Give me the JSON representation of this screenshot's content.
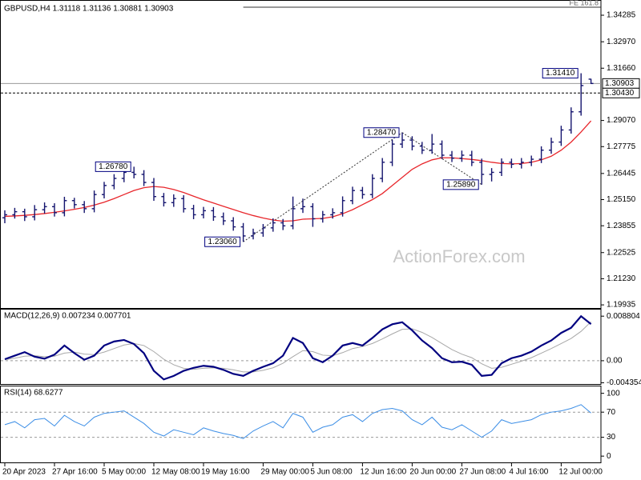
{
  "chart_data": [
    {
      "type": "ohlc",
      "title": "GBPUSD,H4 1.31118 1.31136 1.30881 1.30903",
      "watermark": "ActionForex.com",
      "color": "#14146e",
      "categories": [
        "20 Apr 2023",
        null,
        null,
        null,
        null,
        "27 Apr 16:00",
        null,
        null,
        null,
        null,
        "5 May 00:00",
        null,
        null,
        null,
        null,
        "12 May 08:00",
        null,
        null,
        null,
        null,
        "19 May 16:00",
        null,
        null,
        null,
        null,
        null,
        "29 May 00:00",
        null,
        null,
        null,
        null,
        "5 Jun 08:00",
        null,
        null,
        null,
        null,
        "12 Jun 16:00",
        null,
        null,
        null,
        null,
        "20 Jun 00:00",
        null,
        null,
        null,
        null,
        "27 Jun 08:00",
        null,
        null,
        null,
        null,
        "4 Jul 16:00",
        null,
        null,
        null,
        null,
        "12 Jul 00:00",
        null,
        null,
        null
      ],
      "open": [
        1.2425,
        1.244,
        1.2455,
        1.243,
        1.2465,
        1.248,
        1.245,
        1.251,
        1.249,
        1.247,
        1.254,
        1.2585,
        1.262,
        1.265,
        1.264,
        1.26,
        1.253,
        1.25,
        1.252,
        1.247,
        1.244,
        1.246,
        1.243,
        1.241,
        1.238,
        1.2335,
        1.235,
        1.2375,
        1.24,
        1.2385,
        1.247,
        1.248,
        1.242,
        1.244,
        1.245,
        1.251,
        1.256,
        1.254,
        1.262,
        1.27,
        1.279,
        1.281,
        1.278,
        1.276,
        1.279,
        1.2735,
        1.272,
        1.2735,
        1.27,
        1.264,
        1.265,
        1.27,
        1.269,
        1.27,
        1.2715,
        1.276,
        1.28,
        1.286,
        1.295,
        1.31118
      ],
      "high": [
        1.2462,
        1.2474,
        1.247,
        1.2488,
        1.2501,
        1.2497,
        1.2529,
        1.2524,
        1.2508,
        1.256,
        1.2603,
        1.2641,
        1.2669,
        1.2678,
        1.2661,
        1.2622,
        1.2548,
        1.2541,
        1.2537,
        1.2489,
        1.2479,
        1.2478,
        1.2451,
        1.2428,
        1.2399,
        1.2371,
        1.2394,
        1.2422,
        1.2419,
        1.253,
        1.252,
        1.2497,
        1.2459,
        1.2472,
        1.2531,
        1.2579,
        1.2578,
        1.2641,
        1.2721,
        1.2812,
        1.2847,
        1.2829,
        1.2801,
        1.284,
        1.2808,
        1.2756,
        1.2758,
        1.2757,
        1.2718,
        1.2671,
        1.2719,
        1.2718,
        1.2721,
        1.2733,
        1.2779,
        1.2822,
        1.2881,
        1.2972,
        1.3141,
        1.31136
      ],
      "low": [
        1.2398,
        1.2421,
        1.2409,
        1.2412,
        1.2446,
        1.2431,
        1.2432,
        1.2471,
        1.2449,
        1.2452,
        1.2521,
        1.2566,
        1.2601,
        1.262,
        1.2582,
        1.2509,
        1.2481,
        1.2479,
        1.2451,
        1.2418,
        1.2422,
        1.241,
        1.2389,
        1.2361,
        1.2306,
        1.2318,
        1.2331,
        1.2356,
        1.2364,
        1.2368,
        1.2449,
        1.238,
        1.2401,
        1.2421,
        1.2431,
        1.2492,
        1.2519,
        1.2522,
        1.2601,
        1.2681,
        1.2771,
        1.2759,
        1.2741,
        1.2742,
        1.2716,
        1.2701,
        1.2702,
        1.2681,
        1.2589,
        1.2605,
        1.2632,
        1.2671,
        1.2669,
        1.2681,
        1.2696,
        1.2742,
        1.2781,
        1.2842,
        1.2931,
        1.30881
      ],
      "close": [
        1.244,
        1.2455,
        1.243,
        1.2465,
        1.248,
        1.245,
        1.251,
        1.249,
        1.247,
        1.254,
        1.2585,
        1.262,
        1.265,
        1.264,
        1.26,
        1.253,
        1.25,
        1.252,
        1.247,
        1.244,
        1.246,
        1.243,
        1.241,
        1.238,
        1.2335,
        1.235,
        1.2375,
        1.24,
        1.2385,
        1.247,
        1.248,
        1.242,
        1.244,
        1.245,
        1.251,
        1.256,
        1.254,
        1.262,
        1.27,
        1.279,
        1.281,
        1.278,
        1.276,
        1.279,
        1.2735,
        1.272,
        1.2735,
        1.27,
        1.264,
        1.265,
        1.27,
        1.269,
        1.27,
        1.2715,
        1.276,
        1.28,
        1.286,
        1.295,
        1.308,
        1.30903
      ],
      "overlay": {
        "color": "#e8262b",
        "values": [
          1.2432,
          1.2434,
          1.2437,
          1.2441,
          1.2446,
          1.2452,
          1.2459,
          1.2467,
          1.2476,
          1.2488,
          1.2502,
          1.252,
          1.254,
          1.256,
          1.2574,
          1.258,
          1.2576,
          1.2565,
          1.255,
          1.2532,
          1.2514,
          1.2498,
          1.2482,
          1.2466,
          1.245,
          1.2436,
          1.2424,
          1.2414,
          1.2408,
          1.241,
          1.2418,
          1.242,
          1.2422,
          1.243,
          1.2445,
          1.2465,
          1.249,
          1.2515,
          1.2545,
          1.2585,
          1.2625,
          1.2665,
          1.2692,
          1.2712,
          1.2722,
          1.2722,
          1.2718,
          1.2714,
          1.2708,
          1.27,
          1.2694,
          1.2692,
          1.2694,
          1.27,
          1.2712,
          1.273,
          1.276,
          1.28,
          1.285,
          1.2905
        ]
      },
      "ylim": [
        1.1978,
        1.3492
      ],
      "yticks": [
        1.34285,
        {
          "value": 1.3297,
          "label": "1.32970"
        },
        {
          "value": 1.3166,
          "label": "1.31660"
        },
        {
          "value": 1.2907,
          "label": "1.29070"
        },
        1.27775,
        1.26445,
        {
          "value": 1.2515,
          "label": "1.25150"
        },
        1.23855,
        1.22525,
        {
          "value": 1.2123,
          "label": "1.21230"
        },
        1.19935
      ],
      "price_lines": [
        {
          "value": 1.30903,
          "label": "1.30903",
          "style": "solid"
        },
        {
          "value": 1.3043,
          "label": "1.30430",
          "style": "dashed"
        }
      ],
      "fe_line": {
        "value": 1.3468,
        "label": "FE 161.8",
        "from": 24
      },
      "annotations": [
        {
          "text": "1.26780",
          "value": 1.2678,
          "x": 13
        },
        {
          "text": "1.23060",
          "value": 1.2306,
          "x": 24
        },
        {
          "text": "1.28470",
          "value": 1.2847,
          "x": 40
        },
        {
          "text": "1.25890",
          "value": 1.2589,
          "x": 48
        },
        {
          "text": "1.31410",
          "value": 1.3141,
          "x": 58
        }
      ],
      "connectors": [
        [
          1,
          2
        ],
        [
          2,
          3
        ]
      ]
    },
    {
      "type": "line",
      "title": "MACD(12,26,9) 0.007234 0.007701",
      "series": [
        {
          "color": "#000080",
          "values": [
            0.0003,
            0.001,
            0.0017,
            0.0008,
            0.0004,
            0.0012,
            0.003,
            0.0015,
            0.0002,
            0.001,
            0.003,
            0.0038,
            0.0041,
            0.0033,
            0.0015,
            -0.002,
            -0.0037,
            -0.003,
            -0.002,
            -0.0014,
            -0.001,
            -0.0012,
            -0.0018,
            -0.0026,
            -0.003,
            -0.002,
            -0.0012,
            -0.0005,
            0.001,
            0.0045,
            0.0035,
            0.0005,
            -0.0003,
            0.001,
            0.003,
            0.0035,
            0.003,
            0.0045,
            0.0062,
            0.0072,
            0.0076,
            0.006,
            0.004,
            0.0025,
            0.0005,
            -0.0003,
            -0.0002,
            -0.0008,
            -0.003,
            -0.0028,
            -0.0005,
            0.0005,
            0.001,
            0.0018,
            0.003,
            0.004,
            0.0055,
            0.0065,
            0.0088,
            0.007234
          ]
        },
        {
          "color": "#a8a8a8",
          "values": [
            0.0002,
            0.0005,
            0.0009,
            0.001,
            0.0008,
            0.0009,
            0.0015,
            0.0017,
            0.0013,
            0.0012,
            0.0017,
            0.0024,
            0.0031,
            0.0034,
            0.003,
            0.0018,
            0.0003,
            -0.0008,
            -0.0015,
            -0.0017,
            -0.0015,
            -0.0014,
            -0.0015,
            -0.0018,
            -0.0022,
            -0.0022,
            -0.0019,
            -0.0014,
            -0.0005,
            0.0008,
            0.002,
            0.0018,
            0.0011,
            0.001,
            0.0016,
            0.0024,
            0.0028,
            0.0034,
            0.0043,
            0.0053,
            0.0062,
            0.0063,
            0.0056,
            0.0046,
            0.0034,
            0.0022,
            0.0013,
            0.0006,
            -0.0006,
            -0.0015,
            -0.0013,
            -0.0007,
            -0.0001,
            0.0006,
            0.0015,
            0.0024,
            0.0034,
            0.0044,
            0.0058,
            0.007701
          ]
        }
      ],
      "ylim": [
        -0.0046,
        0.0101
      ],
      "yticks": [
        0.008804,
        {
          "value": 0,
          "label": "0.00"
        },
        -0.004354
      ],
      "levels": [
        0
      ]
    },
    {
      "type": "line",
      "title": "RSI(14) 68.6277",
      "series": [
        {
          "color": "#3c8ee6",
          "values": [
            50,
            55,
            45,
            58,
            60,
            48,
            65,
            55,
            48,
            62,
            68,
            70,
            72,
            62,
            52,
            38,
            32,
            42,
            38,
            34,
            45,
            40,
            36,
            33,
            28,
            40,
            48,
            55,
            45,
            68,
            62,
            38,
            46,
            50,
            62,
            66,
            55,
            68,
            74,
            76,
            72,
            58,
            50,
            62,
            46,
            42,
            50,
            40,
            30,
            40,
            58,
            52,
            55,
            58,
            66,
            70,
            72,
            76,
            82,
            68.6277
          ]
        }
      ],
      "ylim": [
        -10,
        111
      ],
      "yticks": [
        0,
        30,
        70,
        100
      ],
      "levels": [
        30,
        70
      ]
    }
  ]
}
